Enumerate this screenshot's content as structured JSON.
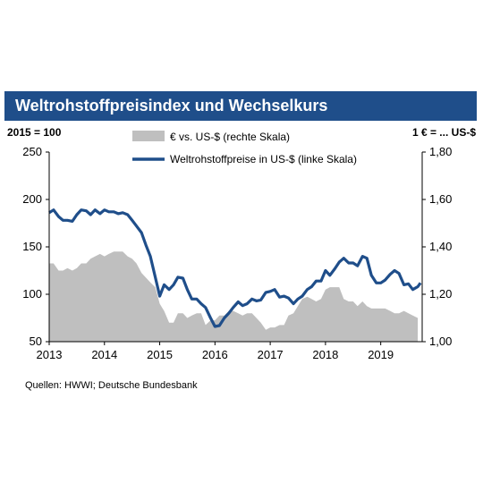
{
  "header": {
    "title": "Weltrohstoffpreisindex und Wechselkurs",
    "left_unit": "2015 = 100",
    "right_unit": "1 € = ... US-$"
  },
  "footer": {
    "source": "Quellen: HWWI; Deutsche Bundesbank"
  },
  "colors": {
    "title_bg": "#1f4e8a",
    "line": "#1f4e8a",
    "area": "#bfbfbf"
  },
  "chart_data": {
    "type": "line",
    "x_ticks": [
      "2013",
      "2014",
      "2015",
      "2016",
      "2017",
      "2018",
      "2019"
    ],
    "xlim": [
      2013.0,
      2019.75
    ],
    "y_left": {
      "ylim": [
        50,
        250
      ],
      "ticks": [
        "50",
        "100",
        "150",
        "200",
        "250"
      ]
    },
    "y_right": {
      "ylim": [
        1.0,
        1.8
      ],
      "ticks": [
        "1,00",
        "1,20",
        "1,40",
        "1,60",
        "1,80"
      ]
    },
    "grid": false,
    "legend_position": "top-center",
    "series": [
      {
        "name": "€ vs. US-$ (rechte Skala)",
        "axis": "right",
        "style": "area",
        "points": [
          [
            2013.0,
            1.33
          ],
          [
            2013.08,
            1.33
          ],
          [
            2013.17,
            1.3
          ],
          [
            2013.25,
            1.3
          ],
          [
            2013.33,
            1.31
          ],
          [
            2013.42,
            1.3
          ],
          [
            2013.5,
            1.31
          ],
          [
            2013.58,
            1.33
          ],
          [
            2013.67,
            1.33
          ],
          [
            2013.75,
            1.35
          ],
          [
            2013.83,
            1.36
          ],
          [
            2013.92,
            1.37
          ],
          [
            2014.0,
            1.36
          ],
          [
            2014.08,
            1.37
          ],
          [
            2014.17,
            1.38
          ],
          [
            2014.25,
            1.38
          ],
          [
            2014.33,
            1.38
          ],
          [
            2014.42,
            1.36
          ],
          [
            2014.5,
            1.35
          ],
          [
            2014.58,
            1.33
          ],
          [
            2014.67,
            1.29
          ],
          [
            2014.75,
            1.27
          ],
          [
            2014.83,
            1.25
          ],
          [
            2014.92,
            1.23
          ],
          [
            2015.0,
            1.16
          ],
          [
            2015.08,
            1.13
          ],
          [
            2015.17,
            1.08
          ],
          [
            2015.25,
            1.08
          ],
          [
            2015.33,
            1.12
          ],
          [
            2015.42,
            1.12
          ],
          [
            2015.5,
            1.1
          ],
          [
            2015.58,
            1.11
          ],
          [
            2015.67,
            1.12
          ],
          [
            2015.75,
            1.12
          ],
          [
            2015.83,
            1.07
          ],
          [
            2015.92,
            1.09
          ],
          [
            2016.0,
            1.09
          ],
          [
            2016.08,
            1.11
          ],
          [
            2016.17,
            1.11
          ],
          [
            2016.25,
            1.13
          ],
          [
            2016.33,
            1.13
          ],
          [
            2016.42,
            1.12
          ],
          [
            2016.5,
            1.11
          ],
          [
            2016.58,
            1.12
          ],
          [
            2016.67,
            1.12
          ],
          [
            2016.75,
            1.1
          ],
          [
            2016.83,
            1.08
          ],
          [
            2016.92,
            1.05
          ],
          [
            2017.0,
            1.06
          ],
          [
            2017.08,
            1.06
          ],
          [
            2017.17,
            1.07
          ],
          [
            2017.25,
            1.07
          ],
          [
            2017.33,
            1.11
          ],
          [
            2017.42,
            1.12
          ],
          [
            2017.5,
            1.15
          ],
          [
            2017.58,
            1.18
          ],
          [
            2017.67,
            1.19
          ],
          [
            2017.75,
            1.18
          ],
          [
            2017.83,
            1.17
          ],
          [
            2017.92,
            1.18
          ],
          [
            2018.0,
            1.22
          ],
          [
            2018.08,
            1.23
          ],
          [
            2018.17,
            1.23
          ],
          [
            2018.25,
            1.23
          ],
          [
            2018.33,
            1.18
          ],
          [
            2018.42,
            1.17
          ],
          [
            2018.5,
            1.17
          ],
          [
            2018.58,
            1.15
          ],
          [
            2018.67,
            1.17
          ],
          [
            2018.75,
            1.15
          ],
          [
            2018.83,
            1.14
          ],
          [
            2018.92,
            1.14
          ],
          [
            2019.0,
            1.14
          ],
          [
            2019.08,
            1.14
          ],
          [
            2019.17,
            1.13
          ],
          [
            2019.25,
            1.12
          ],
          [
            2019.33,
            1.12
          ],
          [
            2019.42,
            1.13
          ],
          [
            2019.5,
            1.12
          ],
          [
            2019.58,
            1.11
          ],
          [
            2019.67,
            1.1
          ]
        ]
      },
      {
        "name": "Weltrohstoffpreise in US-$ (linke Skala)",
        "axis": "left",
        "style": "line",
        "points": [
          [
            2013.0,
            186
          ],
          [
            2013.08,
            189
          ],
          [
            2013.17,
            182
          ],
          [
            2013.25,
            178
          ],
          [
            2013.33,
            178
          ],
          [
            2013.42,
            177
          ],
          [
            2013.5,
            184
          ],
          [
            2013.58,
            189
          ],
          [
            2013.67,
            188
          ],
          [
            2013.75,
            184
          ],
          [
            2013.83,
            189
          ],
          [
            2013.92,
            185
          ],
          [
            2014.0,
            189
          ],
          [
            2014.08,
            187
          ],
          [
            2014.17,
            187
          ],
          [
            2014.25,
            185
          ],
          [
            2014.33,
            186
          ],
          [
            2014.42,
            184
          ],
          [
            2014.5,
            178
          ],
          [
            2014.58,
            172
          ],
          [
            2014.67,
            165
          ],
          [
            2014.75,
            152
          ],
          [
            2014.83,
            140
          ],
          [
            2014.92,
            118
          ],
          [
            2015.0,
            98
          ],
          [
            2015.08,
            110
          ],
          [
            2015.17,
            105
          ],
          [
            2015.25,
            110
          ],
          [
            2015.33,
            118
          ],
          [
            2015.42,
            117
          ],
          [
            2015.5,
            105
          ],
          [
            2015.58,
            95
          ],
          [
            2015.67,
            95
          ],
          [
            2015.75,
            90
          ],
          [
            2015.83,
            86
          ],
          [
            2015.92,
            75
          ],
          [
            2016.0,
            66
          ],
          [
            2016.08,
            67
          ],
          [
            2016.17,
            75
          ],
          [
            2016.25,
            80
          ],
          [
            2016.33,
            86
          ],
          [
            2016.42,
            92
          ],
          [
            2016.5,
            88
          ],
          [
            2016.58,
            90
          ],
          [
            2016.67,
            95
          ],
          [
            2016.75,
            93
          ],
          [
            2016.83,
            94
          ],
          [
            2016.92,
            102
          ],
          [
            2017.0,
            103
          ],
          [
            2017.08,
            105
          ],
          [
            2017.17,
            97
          ],
          [
            2017.25,
            98
          ],
          [
            2017.33,
            96
          ],
          [
            2017.42,
            90
          ],
          [
            2017.5,
            95
          ],
          [
            2017.58,
            98
          ],
          [
            2017.67,
            105
          ],
          [
            2017.75,
            108
          ],
          [
            2017.83,
            114
          ],
          [
            2017.92,
            114
          ],
          [
            2018.0,
            125
          ],
          [
            2018.08,
            120
          ],
          [
            2018.17,
            127
          ],
          [
            2018.25,
            134
          ],
          [
            2018.33,
            138
          ],
          [
            2018.42,
            133
          ],
          [
            2018.5,
            133
          ],
          [
            2018.58,
            130
          ],
          [
            2018.67,
            140
          ],
          [
            2018.75,
            138
          ],
          [
            2018.83,
            120
          ],
          [
            2018.92,
            112
          ],
          [
            2019.0,
            112
          ],
          [
            2019.08,
            115
          ],
          [
            2019.17,
            121
          ],
          [
            2019.25,
            125
          ],
          [
            2019.33,
            122
          ],
          [
            2019.42,
            110
          ],
          [
            2019.5,
            111
          ],
          [
            2019.58,
            105
          ],
          [
            2019.67,
            108
          ],
          [
            2019.72,
            112
          ]
        ]
      }
    ]
  }
}
